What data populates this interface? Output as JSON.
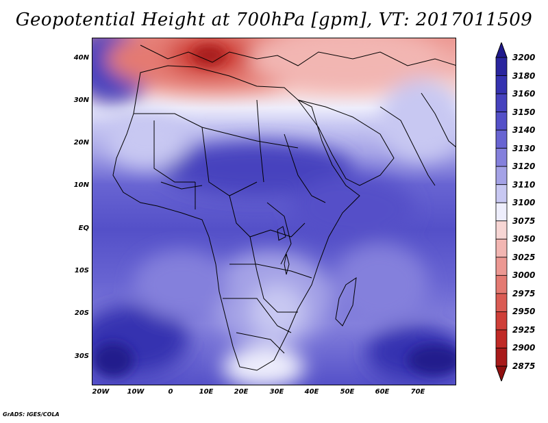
{
  "title": "Geopotential Height at 700hPa [gpm], VT: 2017011509",
  "credit": "GrADS: IGES/COLA",
  "map": {
    "lat_labels": [
      "40N",
      "30N",
      "20N",
      "10N",
      "EQ",
      "10S",
      "20S",
      "30S"
    ],
    "lon_labels": [
      "20W",
      "10W",
      "0",
      "10E",
      "20E",
      "30E",
      "40E",
      "50E",
      "60E",
      "70E"
    ],
    "lat_range": [
      -37,
      45
    ],
    "lon_range": [
      -23,
      80
    ]
  },
  "colorbar": {
    "levels": [
      "3200",
      "3180",
      "3160",
      "3150",
      "3140",
      "3130",
      "3120",
      "3110",
      "3100",
      "3075",
      "3050",
      "3025",
      "3000",
      "2975",
      "2950",
      "2925",
      "2900",
      "2875"
    ],
    "colors": [
      "#201a8c",
      "#2a259e",
      "#3532b0",
      "#4642be",
      "#5450c8",
      "#6864d2",
      "#8480dc",
      "#a4a2e6",
      "#c8c8f2",
      "#eeeefc",
      "#f7d6d4",
      "#f2b6b2",
      "#ec9892",
      "#e47a72",
      "#da5c54",
      "#cf3f38",
      "#c02a26",
      "#a81a1a",
      "#901010"
    ]
  }
}
